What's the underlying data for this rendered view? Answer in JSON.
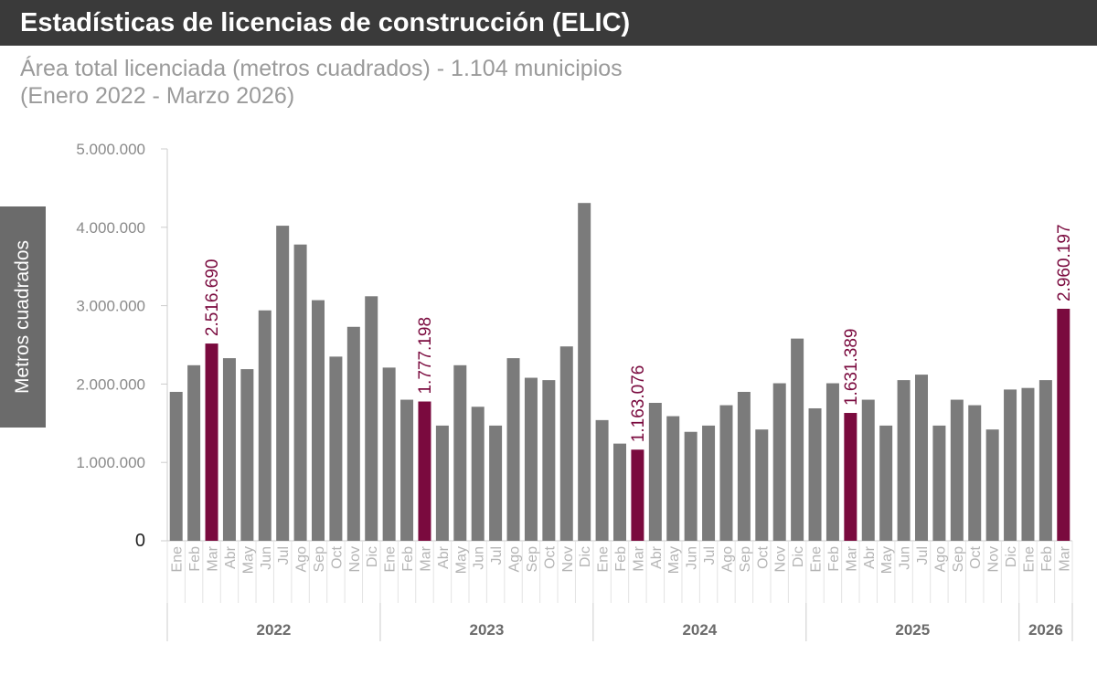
{
  "header": {
    "title": "Estadísticas de licencias de construcción (ELIC)"
  },
  "subtitle": {
    "line1": "Área total licenciada (metros cuadrados) - 1.104 municipios",
    "line2": "(Enero 2022 - Marzo 2026)"
  },
  "colors": {
    "bar": "#7b7b7b",
    "highlight": "#7a0a3e",
    "axis": "#cccccc",
    "tick_text": "#8a8a8a",
    "month_text": "#b5b5b5",
    "year_text": "#6b6b6b"
  },
  "chart_data": {
    "type": "bar",
    "ylabel": "Metros cuadrados",
    "ylim": [
      0,
      5000000
    ],
    "yticks": [
      {
        "value": 0,
        "label": "0"
      },
      {
        "value": 1000000,
        "label": "1.000.000"
      },
      {
        "value": 2000000,
        "label": "2.000.000"
      },
      {
        "value": 3000000,
        "label": "3.000.000"
      },
      {
        "value": 4000000,
        "label": "4.000.000"
      },
      {
        "value": 5000000,
        "label": "5.000.000"
      }
    ],
    "years": [
      {
        "label": "2022",
        "count": 12
      },
      {
        "label": "2023",
        "count": 12
      },
      {
        "label": "2024",
        "count": 12
      },
      {
        "label": "2025",
        "count": 12
      },
      {
        "label": "2026",
        "count": 3
      }
    ],
    "categories": [
      "Ene",
      "Feb",
      "Mar",
      "Abr",
      "May",
      "Jun",
      "Jul",
      "Ago",
      "Sep",
      "Oct",
      "Nov",
      "Dic",
      "Ene",
      "Feb",
      "Mar",
      "Abr",
      "May",
      "Jun",
      "Jul",
      "Ago",
      "Sep",
      "Oct",
      "Nov",
      "Dic",
      "Ene",
      "Feb",
      "Mar",
      "Abr",
      "May",
      "Jun",
      "Jul",
      "Ago",
      "Sep",
      "Oct",
      "Nov",
      "Dic",
      "Ene",
      "Feb",
      "Mar",
      "Abr",
      "May",
      "Jun",
      "Jul",
      "Ago",
      "Sep",
      "Oct",
      "Nov",
      "Dic",
      "Ene",
      "Feb",
      "Mar"
    ],
    "values": [
      1900000,
      2240000,
      2516690,
      2330000,
      2190000,
      2940000,
      4020000,
      3780000,
      3070000,
      2350000,
      2730000,
      3120000,
      2210000,
      1800000,
      1777198,
      1470000,
      2240000,
      1710000,
      1470000,
      2330000,
      2080000,
      2050000,
      2480000,
      4310000,
      1540000,
      1240000,
      1163076,
      1760000,
      1590000,
      1390000,
      1470000,
      1730000,
      1900000,
      1420000,
      2010000,
      2580000,
      1690000,
      2010000,
      1631389,
      1800000,
      1470000,
      2050000,
      2120000,
      1470000,
      1800000,
      1730000,
      1420000,
      1930000,
      1950000,
      2050000,
      2960197
    ],
    "highlight": [
      {
        "index": 2,
        "label": "2.516.690"
      },
      {
        "index": 14,
        "label": "1.777.198"
      },
      {
        "index": 26,
        "label": "1.163.076"
      },
      {
        "index": 38,
        "label": "1.631.389"
      },
      {
        "index": 50,
        "label": "2.960.197"
      }
    ],
    "grid": false,
    "legend": "none"
  }
}
